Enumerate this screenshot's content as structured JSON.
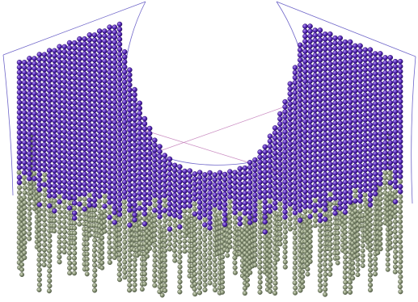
{
  "design": {
    "name": "beaded-neckline-fringe",
    "colors": {
      "primary_bead": "#5b2bbf",
      "primary_bead_highlight": "#9b7ae6",
      "primary_bead_outline": "#2a0f6b",
      "fringe_bead": "#8e9a7b",
      "fringe_bead_highlight": "#c8d0b6",
      "fringe_bead_outline": "#5b6650",
      "outline_line": "#6f66c9",
      "guide_line": "#c98ac0",
      "background": "#ffffff"
    }
  }
}
